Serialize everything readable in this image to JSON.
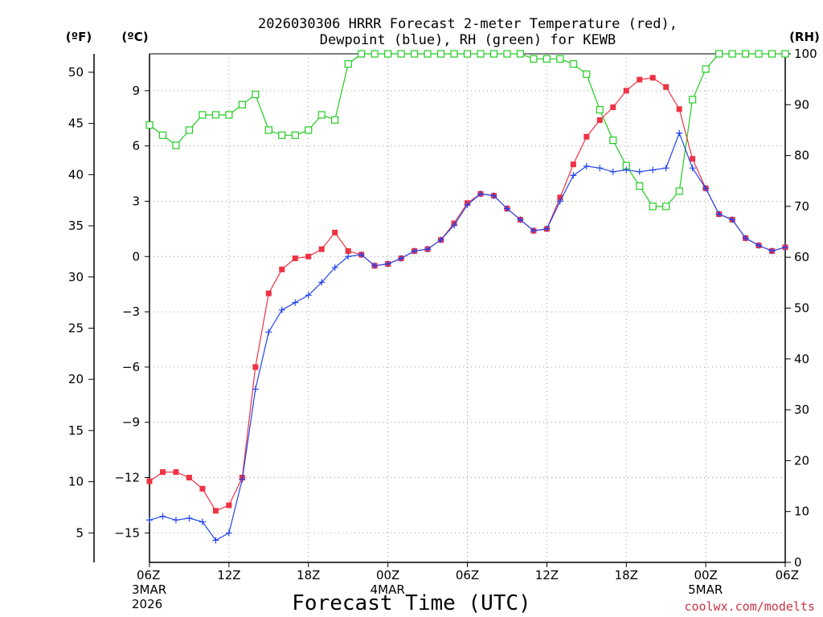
{
  "chart_data": {
    "type": "line",
    "title": "2026030306 HRRR Forecast 2-meter Temperature (red),",
    "subtitle": "Dewpoint (blue), RH (green) for KEWB",
    "xlabel": "Forecast Time (UTC)",
    "credit": "coolwx.com/modelts",
    "x_hours": [
      0,
      1,
      2,
      3,
      4,
      5,
      6,
      7,
      8,
      9,
      10,
      11,
      12,
      13,
      14,
      15,
      16,
      17,
      18,
      19,
      20,
      21,
      22,
      23,
      24,
      25,
      26,
      27,
      28,
      29,
      30,
      31,
      32,
      33,
      34,
      35,
      36,
      37,
      38,
      39,
      40,
      41,
      42,
      43,
      44,
      45,
      46,
      47,
      48
    ],
    "x_ticks": [
      {
        "hour": 0,
        "label": "06Z",
        "sub": [
          "3MAR",
          "2026"
        ]
      },
      {
        "hour": 6,
        "label": "12Z",
        "sub": []
      },
      {
        "hour": 12,
        "label": "18Z",
        "sub": []
      },
      {
        "hour": 18,
        "label": "00Z",
        "sub": [
          "4MAR"
        ]
      },
      {
        "hour": 24,
        "label": "06Z",
        "sub": []
      },
      {
        "hour": 30,
        "label": "12Z",
        "sub": []
      },
      {
        "hour": 36,
        "label": "18Z",
        "sub": []
      },
      {
        "hour": 42,
        "label": "00Z",
        "sub": [
          "5MAR"
        ]
      },
      {
        "hour": 48,
        "label": "06Z",
        "sub": []
      }
    ],
    "axes": {
      "celsius": {
        "unit": "(ºC)",
        "range": [
          -16.6,
          11
        ],
        "ticks": [
          -15,
          -12,
          -9,
          -6,
          -3,
          0,
          3,
          6,
          9
        ]
      },
      "fahrenheit": {
        "unit": "(ºF)",
        "ticks": [
          5,
          10,
          15,
          20,
          25,
          30,
          35,
          40,
          45,
          50
        ]
      },
      "rh": {
        "unit": "(RH)",
        "range": [
          0,
          100
        ],
        "ticks": [
          0,
          10,
          20,
          30,
          40,
          50,
          60,
          70,
          80,
          90,
          100
        ]
      }
    },
    "series": [
      {
        "name": "Temperature",
        "axis": "celsius",
        "color": "#ee3344",
        "marker": "filled-square",
        "values": [
          -12.2,
          -11.7,
          -11.7,
          -12.0,
          -12.6,
          -13.8,
          -13.5,
          -12.0,
          -6.0,
          -2.0,
          -0.7,
          -0.1,
          0.0,
          0.4,
          1.3,
          0.3,
          0.1,
          -0.5,
          -0.4,
          -0.1,
          0.3,
          0.4,
          0.9,
          1.8,
          2.9,
          3.4,
          3.3,
          2.6,
          2.0,
          1.4,
          1.5,
          3.2,
          5.0,
          6.5,
          7.4,
          8.1,
          9.0,
          9.6,
          9.7,
          9.2,
          8.0,
          5.3,
          3.7,
          2.3,
          2.0,
          1.0,
          0.6,
          0.3,
          0.5
        ]
      },
      {
        "name": "Dewpoint",
        "axis": "celsius",
        "color": "#2244ee",
        "marker": "plus",
        "values": [
          -14.3,
          -14.1,
          -14.3,
          -14.2,
          -14.4,
          -15.4,
          -15.0,
          -12.1,
          -7.2,
          -4.1,
          -2.9,
          -2.5,
          -2.1,
          -1.4,
          -0.6,
          0.0,
          0.1,
          -0.5,
          -0.4,
          -0.1,
          0.3,
          0.4,
          0.9,
          1.7,
          2.8,
          3.4,
          3.3,
          2.6,
          2.0,
          1.4,
          1.5,
          3.0,
          4.4,
          4.9,
          4.8,
          4.6,
          4.7,
          4.6,
          4.7,
          4.8,
          6.7,
          4.8,
          3.7,
          2.3,
          2.0,
          1.0,
          0.6,
          0.3,
          0.5
        ]
      },
      {
        "name": "RH",
        "axis": "rh",
        "color": "#22cc22",
        "marker": "open-square",
        "values": [
          86,
          84,
          82,
          85,
          88,
          88,
          88,
          90,
          92,
          85,
          84,
          84,
          85,
          88,
          87,
          98,
          100,
          100,
          100,
          100,
          100,
          100,
          100,
          100,
          100,
          100,
          100,
          100,
          100,
          99,
          99,
          99,
          98,
          96,
          89,
          83,
          78,
          74,
          70,
          70,
          73,
          91,
          97,
          100,
          100,
          100,
          100,
          100,
          100
        ]
      }
    ]
  }
}
